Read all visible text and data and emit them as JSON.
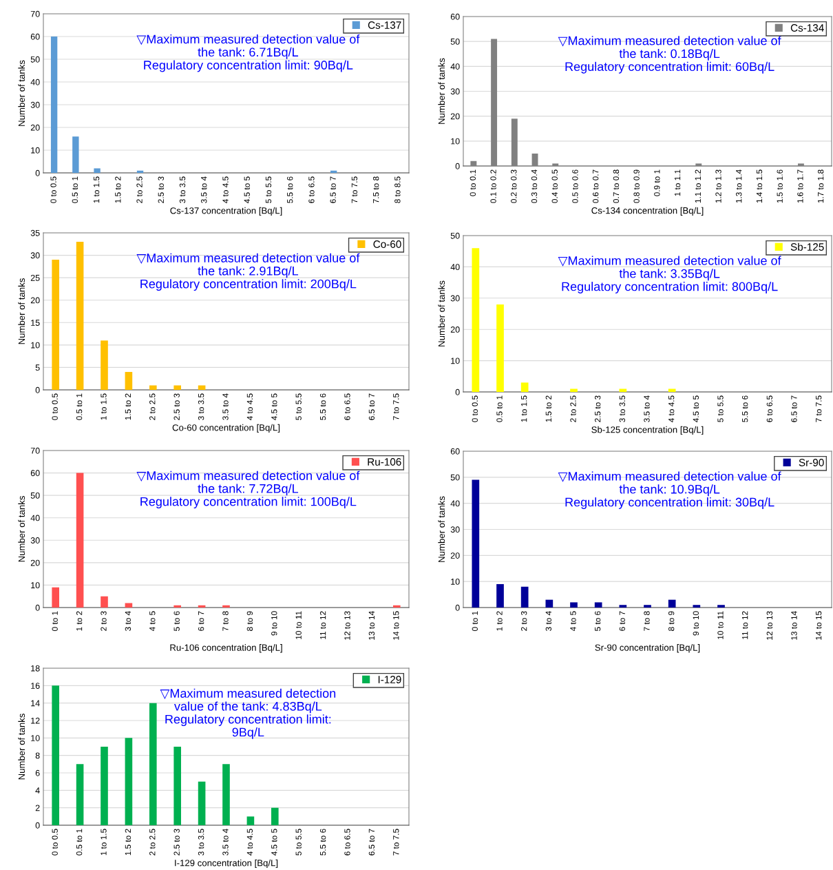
{
  "chart_data": [
    {
      "type": "bar",
      "xlabel": "Cs-137 concentration [Bq/L]",
      "ylabel": "Number of tanks",
      "categories": [
        "0 to 0.5",
        "0.5 to 1",
        "1 to 1.5",
        "1.5 to 2",
        "2 to 2.5",
        "2.5 to 3",
        "3 to 3.5",
        "3.5 to 4",
        "4 to 4.5",
        "4.5 to 5",
        "5 to 5.5",
        "5.5 to 6",
        "6 to 6.5",
        "6.5 to 7",
        "7 to 7.5",
        "7.5 to 8",
        "8 to 8.5"
      ],
      "series": [
        {
          "name": "Cs-137",
          "color": "#5b9bd5",
          "values": [
            60,
            16,
            2,
            0,
            1,
            0,
            0,
            0,
            0,
            0,
            0,
            0,
            0,
            1,
            0,
            0,
            0
          ]
        }
      ],
      "ylim": [
        0,
        70
      ],
      "yticks": [
        0,
        10,
        20,
        30,
        40,
        50,
        60,
        70
      ],
      "grid": "y",
      "legend": "top right",
      "annotations": [
        "▽Maximum measured detection value of\nthe tank: 6.71Bq/L\nRegulatory concentration limit: 90Bq/L"
      ]
    },
    {
      "type": "bar",
      "xlabel": "Cs-134 concentration [Bq/L]",
      "ylabel": "Number of tanks",
      "categories": [
        "0 to 0.1",
        "0.1 to 0.2",
        "0.2 to 0.3",
        "0.3 to 0.4",
        "0.4 to 0.5",
        "0.5 to 0.6",
        "0.6 to 0.7",
        "0.7 to 0.8",
        "0.8 to 0.9",
        "0.9 to 1",
        "1 to 1.1",
        "1.1 to 1.2",
        "1.2 to 1.3",
        "1.3 to 1.4",
        "1.4 to 1.5",
        "1.5 to 1.6",
        "1.6 to 1.7",
        "1.7 to 1.8"
      ],
      "series": [
        {
          "name": "Cs-134",
          "color": "#808080",
          "values": [
            2,
            51,
            19,
            5,
            1,
            0,
            0,
            0,
            0,
            0,
            0,
            1,
            0,
            0,
            0,
            0,
            1,
            0
          ]
        }
      ],
      "ylim": [
        0,
        60
      ],
      "yticks": [
        0,
        10,
        20,
        30,
        40,
        50,
        60
      ],
      "grid": "y",
      "legend": "top right",
      "annotations": [
        "▽Maximum measured detection value of\nthe tank: 0.18Bq/L\nRegulatory concentration limit: 60Bq/L"
      ]
    },
    {
      "type": "bar",
      "xlabel": "Co-60 concentration [Bq/L]",
      "ylabel": "Number of tanks",
      "categories": [
        "0 to 0.5",
        "0.5 to 1",
        "1 to 1.5",
        "1.5 to 2",
        "2 to 2.5",
        "2.5 to 3",
        "3 to 3.5",
        "3.5 to 4",
        "4 to 4.5",
        "4.5 to 5",
        "5 to 5.5",
        "5.5 to 6",
        "6 to 6.5",
        "6.5 to 7",
        "7 to 7.5"
      ],
      "series": [
        {
          "name": "Co-60",
          "color": "#ffc000",
          "values": [
            29,
            33,
            11,
            4,
            1,
            1,
            1,
            0,
            0,
            0,
            0,
            0,
            0,
            0,
            0
          ]
        }
      ],
      "ylim": [
        0,
        35
      ],
      "yticks": [
        0,
        5,
        10,
        15,
        20,
        25,
        30,
        35
      ],
      "grid": "y",
      "legend": "top right",
      "annotations": [
        "▽Maximum measured detection value of\nthe tank: 2.91Bq/L\nRegulatory concentration limit: 200Bq/L"
      ]
    },
    {
      "type": "bar",
      "xlabel": "Sb-125 concentration [Bq/L]",
      "ylabel": "Number of tanks",
      "categories": [
        "0 to 0.5",
        "0.5 to 1",
        "1 to 1.5",
        "1.5 to 2",
        "2 to 2.5",
        "2.5 to 3",
        "3 to 3.5",
        "3.5 to 4",
        "4 to 4.5",
        "4.5 to 5",
        "5 to 5.5",
        "5.5 to 6",
        "6 to 6.5",
        "6.5 to 7",
        "7 to 7.5"
      ],
      "series": [
        {
          "name": "Sb-125",
          "color": "#ffff00",
          "values": [
            46,
            28,
            3,
            0,
            1,
            0,
            1,
            0,
            1,
            0,
            0,
            0,
            0,
            0,
            0
          ]
        }
      ],
      "ylim": [
        0,
        50
      ],
      "yticks": [
        0,
        10,
        20,
        30,
        40,
        50
      ],
      "grid": "y",
      "legend": "top right",
      "annotations": [
        "▽Maximum measured detection value of\nthe tank: 3.35Bq/L\nRegulatory concentration limit: 800Bq/L"
      ]
    },
    {
      "type": "bar",
      "xlabel": "Ru-106 concentration [Bq/L]",
      "ylabel": "Number of tanks",
      "categories": [
        "0 to 1",
        "1 to 2",
        "2 to 3",
        "3 to 4",
        "4 to 5",
        "5 to 6",
        "6 to 7",
        "7 to 8",
        "8 to 9",
        "9 to 10",
        "10 to 11",
        "11 to 12",
        "12 to 13",
        "13 to 14",
        "14 to 15"
      ],
      "series": [
        {
          "name": "Ru-106",
          "color": "#ff5050",
          "values": [
            9,
            60,
            5,
            2,
            0,
            1,
            1,
            1,
            0,
            0,
            0,
            0,
            0,
            0,
            1
          ]
        }
      ],
      "ylim": [
        0,
        70
      ],
      "yticks": [
        0,
        10,
        20,
        30,
        40,
        50,
        60,
        70
      ],
      "grid": "y",
      "legend": "top right",
      "annotations": [
        "▽Maximum measured detection value of\nthe tank: 7.72Bq/L\nRegulatory concentration limit: 100Bq/L"
      ]
    },
    {
      "type": "bar",
      "xlabel": "Sr-90 concentration [Bq/L]",
      "ylabel": "Number of tanks",
      "categories": [
        "0 to 1",
        "1 to 2",
        "2 to 3",
        "3 to 4",
        "4 to 5",
        "5 to 6",
        "6 to 7",
        "7 to 8",
        "8 to 9",
        "9 to 10",
        "10 to 11",
        "11 to 12",
        "12 to 13",
        "13 to 14",
        "14 to 15"
      ],
      "series": [
        {
          "name": "Sr-90",
          "color": "#000099",
          "values": [
            49,
            9,
            8,
            3,
            2,
            2,
            1,
            1,
            3,
            1,
            1,
            0,
            0,
            0,
            0
          ]
        }
      ],
      "ylim": [
        0,
        60
      ],
      "yticks": [
        0,
        10,
        20,
        30,
        40,
        50,
        60
      ],
      "grid": "y",
      "legend": "top right",
      "annotations": [
        "▽Maximum measured detection value of\nthe tank: 10.9Bq/L\nRegulatory concentration limit: 30Bq/L"
      ]
    },
    {
      "type": "bar",
      "xlabel": "I-129 concentration [Bq/L]",
      "ylabel": "Number of tanks",
      "categories": [
        "0 to 0.5",
        "0.5 to 1",
        "1 to 1.5",
        "1.5 to 2",
        "2 to 2.5",
        "2.5 to 3",
        "3 to 3.5",
        "3.5 to 4",
        "4 to 4.5",
        "4.5 to 5",
        "5 to 5.5",
        "5.5 to 6",
        "6 to 6.5",
        "6.5 to 7",
        "7 to 7.5"
      ],
      "series": [
        {
          "name": "I-129",
          "color": "#00b050",
          "values": [
            16,
            7,
            9,
            10,
            14,
            9,
            5,
            7,
            1,
            2,
            0,
            0,
            0,
            0,
            0
          ]
        }
      ],
      "ylim": [
        0,
        18
      ],
      "yticks": [
        0,
        2,
        4,
        6,
        8,
        10,
        12,
        14,
        16,
        18
      ],
      "grid": "y",
      "legend": "top right",
      "annotations": [
        "▽Maximum measured detection\nvalue of the tank: 4.83Bq/L\nRegulatory concentration limit:\n9Bq/L"
      ]
    }
  ]
}
